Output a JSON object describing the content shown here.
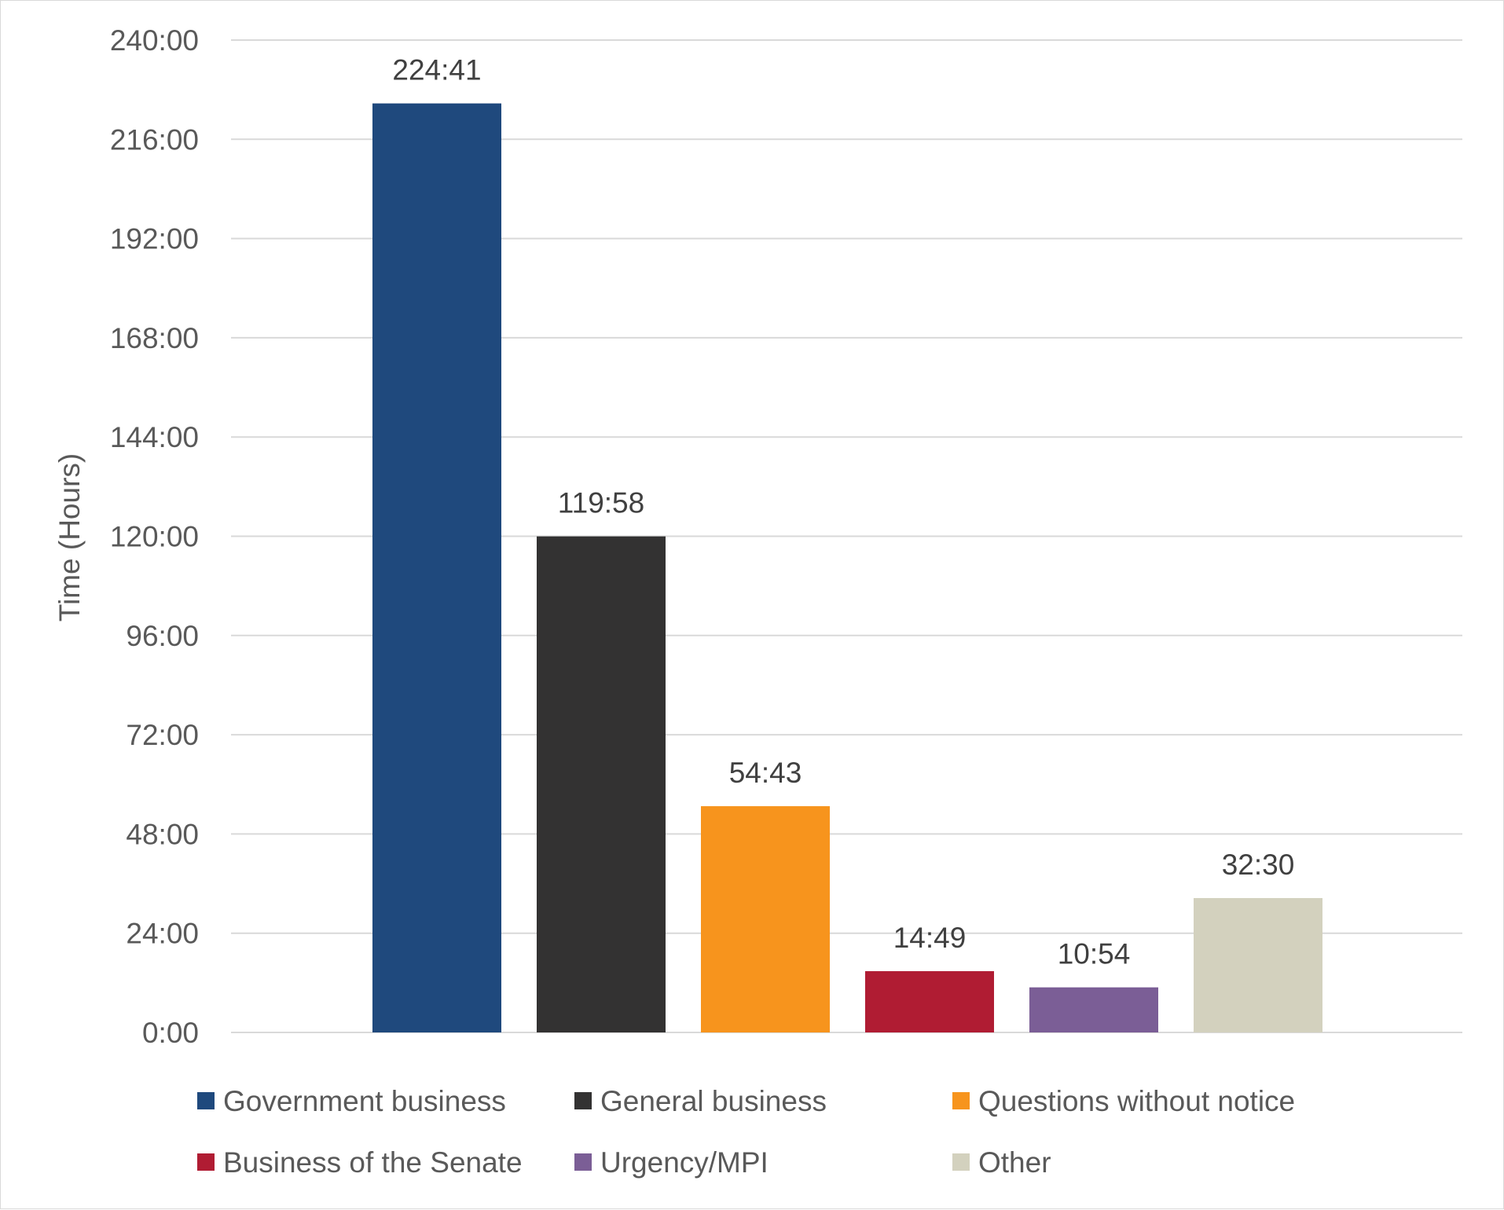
{
  "chart_data": {
    "type": "bar",
    "title": "",
    "xlabel": "",
    "ylabel": "Time (Hours)",
    "ylim": [
      0,
      240
    ],
    "y_ticks": [
      0,
      24,
      48,
      72,
      96,
      120,
      144,
      168,
      192,
      216,
      240
    ],
    "y_tick_labels": [
      "0:00",
      "24:00",
      "48:00",
      "72:00",
      "96:00",
      "120:00",
      "144:00",
      "168:00",
      "192:00",
      "216:00",
      "240:00"
    ],
    "grid": true,
    "legend_position": "bottom",
    "categories": [
      "Government business",
      "General business",
      "Questions without notice",
      "Business of the Senate",
      "Urgency/MPI",
      "Other"
    ],
    "values": [
      224.683,
      119.967,
      54.717,
      14.817,
      10.9,
      32.5
    ],
    "data_labels": [
      "224:41",
      "119:58",
      "54:43",
      "14:49",
      "10:54",
      "32:30"
    ],
    "colors": [
      "#1f497d",
      "#333232",
      "#f7941d",
      "#b01c33",
      "#7b5e96",
      "#d3d1be"
    ]
  }
}
